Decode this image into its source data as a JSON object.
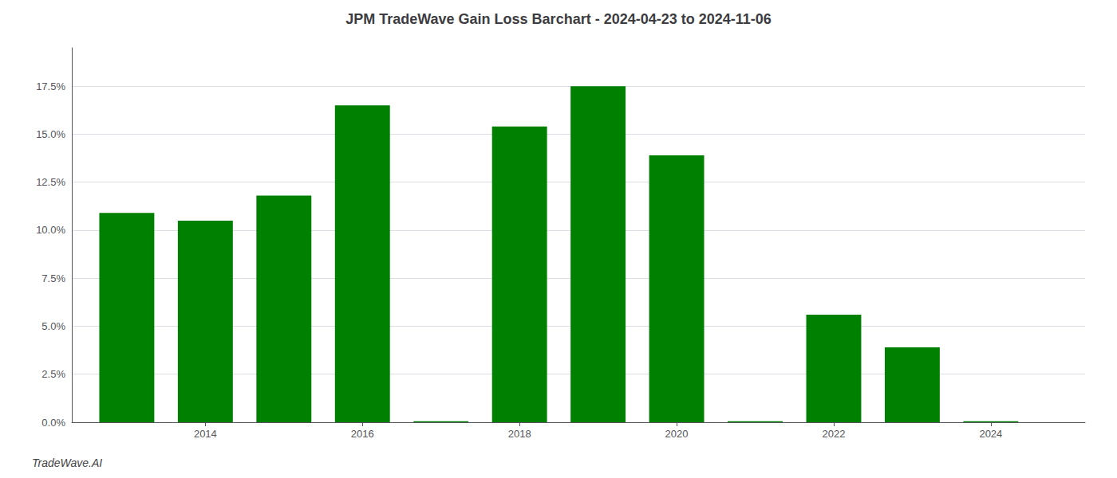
{
  "chart_data": {
    "type": "bar",
    "title": "JPM TradeWave Gain Loss Barchart - 2024-04-23 to 2024-11-06",
    "annotations": [
      "TradeWave.AI"
    ],
    "x": [
      2013,
      2014,
      2015,
      2016,
      2017,
      2018,
      2019,
      2020,
      2021,
      2022,
      2023,
      2024
    ],
    "values": [
      0.109,
      0.105,
      0.118,
      0.165,
      0.0005,
      0.154,
      0.175,
      0.139,
      0.0005,
      0.056,
      0.039,
      0.0005
    ],
    "color": "#008000",
    "xlim": [
      2012.3,
      2025.2
    ],
    "xticks": [
      2014,
      2016,
      2018,
      2020,
      2022,
      2024
    ],
    "ylim": [
      0,
      0.195
    ],
    "yticks": [
      {
        "value": 0.0,
        "label": "0.0%"
      },
      {
        "value": 0.025,
        "label": "2.5%"
      },
      {
        "value": 0.05,
        "label": "5.0%"
      },
      {
        "value": 0.075,
        "label": "7.5%"
      },
      {
        "value": 0.1,
        "label": "10.0%"
      },
      {
        "value": 0.125,
        "label": "12.5%"
      },
      {
        "value": 0.15,
        "label": "15.0%"
      },
      {
        "value": 0.175,
        "label": "17.5%"
      }
    ],
    "grid": true
  }
}
